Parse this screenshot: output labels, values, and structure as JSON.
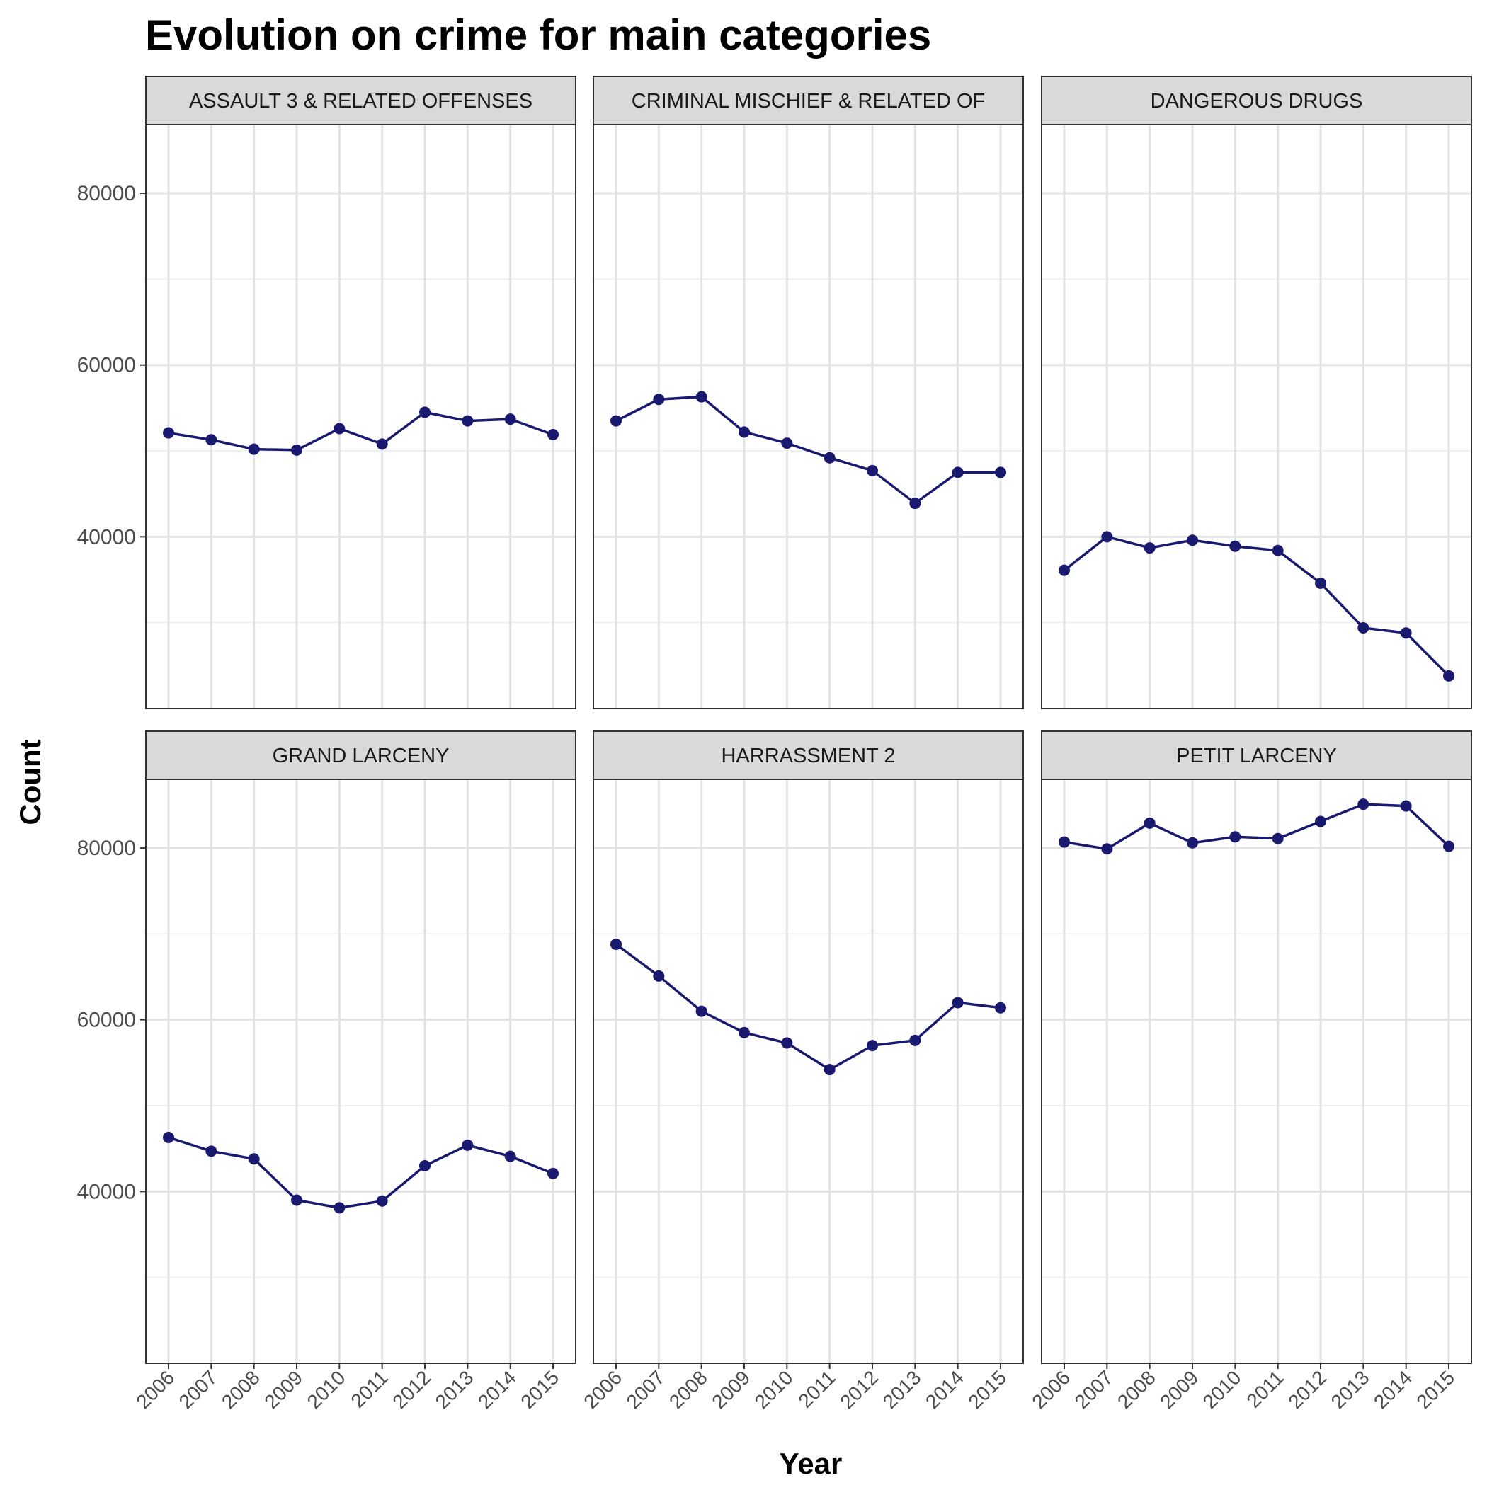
{
  "title": "Evolution on crime for main categories",
  "chart_data": {
    "type": "line",
    "title": "Evolution on crime for main categories",
    "xlabel": "Year",
    "ylabel": "Count",
    "x": [
      "2006",
      "2007",
      "2008",
      "2009",
      "2010",
      "2011",
      "2012",
      "2013",
      "2014",
      "2015"
    ],
    "yticks": [
      40000,
      60000,
      80000
    ],
    "ylim": [
      20000,
      88000
    ],
    "grid": true,
    "layout": "facet-grid 2 rows x 3 columns, shared y axis",
    "line_color": "#191970",
    "panels": [
      {
        "name": "ASSAULT 3 & RELATED OFFENSES",
        "values": [
          52100,
          51300,
          50200,
          50100,
          52600,
          50800,
          54500,
          53500,
          53700,
          51900
        ]
      },
      {
        "name": "CRIMINAL MISCHIEF & RELATED OF",
        "values": [
          53500,
          56000,
          56300,
          52200,
          50900,
          49200,
          47700,
          43900,
          47500,
          47500
        ]
      },
      {
        "name": "DANGEROUS DRUGS",
        "values": [
          36100,
          40000,
          38700,
          39600,
          38900,
          38400,
          34600,
          29400,
          28800,
          23800
        ]
      },
      {
        "name": "GRAND LARCENY",
        "values": [
          46300,
          44700,
          43800,
          39000,
          38100,
          38900,
          43000,
          45400,
          44100,
          42100
        ]
      },
      {
        "name": "HARRASSMENT 2",
        "values": [
          68800,
          65100,
          61000,
          58500,
          57300,
          54200,
          57000,
          57600,
          62000,
          61400
        ]
      },
      {
        "name": "PETIT LARCENY",
        "values": [
          80700,
          79900,
          82900,
          80600,
          81300,
          81100,
          83100,
          85100,
          84900,
          80200
        ]
      }
    ]
  }
}
